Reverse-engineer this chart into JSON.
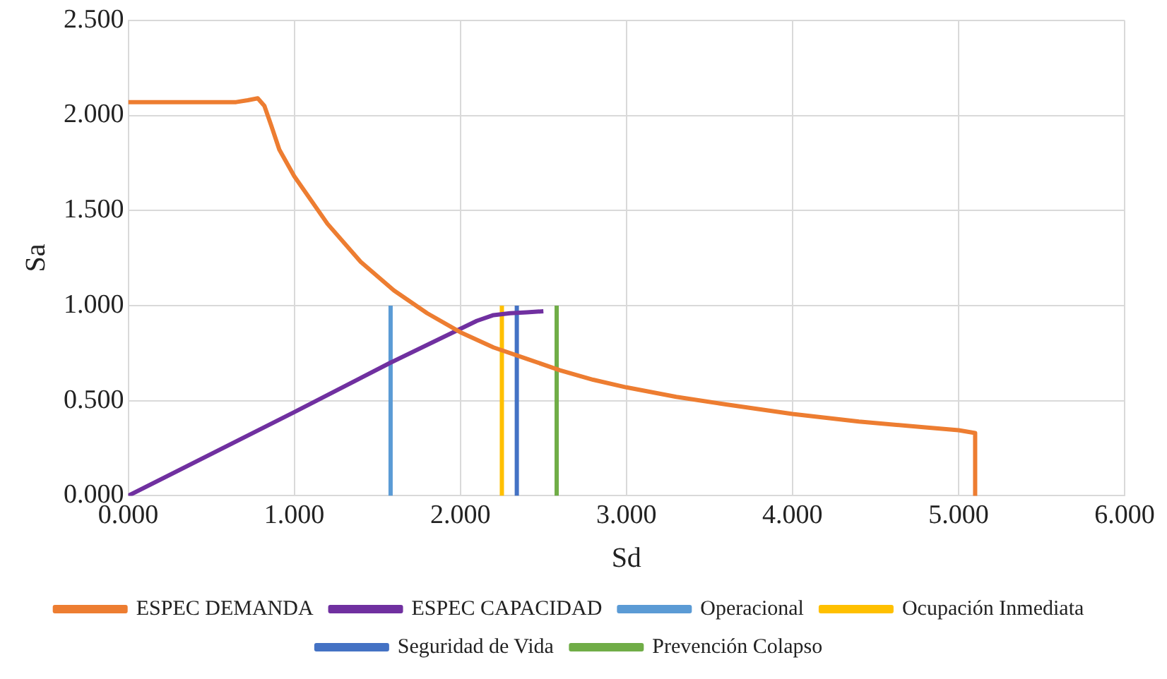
{
  "chart_data": {
    "type": "line",
    "xlabel": "Sd",
    "ylabel": "Sa",
    "xlim": [
      0,
      6
    ],
    "ylim": [
      0,
      2.5
    ],
    "xticks": [
      {
        "value": 0,
        "label": "0.000"
      },
      {
        "value": 1,
        "label": "1.000"
      },
      {
        "value": 2,
        "label": "2.000"
      },
      {
        "value": 3,
        "label": "3.000"
      },
      {
        "value": 4,
        "label": "4.000"
      },
      {
        "value": 5,
        "label": "5.000"
      },
      {
        "value": 6,
        "label": "6.000"
      }
    ],
    "yticks": [
      {
        "value": 0,
        "label": "0.000"
      },
      {
        "value": 0.5,
        "label": "0.500"
      },
      {
        "value": 1,
        "label": "1.000"
      },
      {
        "value": 1.5,
        "label": "1.500"
      },
      {
        "value": 2,
        "label": "2.000"
      },
      {
        "value": 2.5,
        "label": "2.500"
      }
    ],
    "grid": true,
    "legend": "bottom",
    "marker": "none",
    "line_style": "solid",
    "series": [
      {
        "name": "ESPEC DEMANDA",
        "color": "#ed7d31",
        "x": [
          0,
          0.3,
          0.65,
          0.72,
          0.78,
          0.82,
          0.86,
          0.91,
          1.0,
          1.2,
          1.4,
          1.6,
          1.8,
          2.0,
          2.2,
          2.4,
          2.6,
          2.8,
          3.0,
          3.3,
          3.6,
          4.0,
          4.4,
          4.8,
          5.0,
          5.1,
          5.1
        ],
        "values": [
          2.07,
          2.07,
          2.07,
          2.08,
          2.09,
          2.05,
          1.95,
          1.82,
          1.68,
          1.43,
          1.23,
          1.08,
          0.96,
          0.86,
          0.78,
          0.72,
          0.66,
          0.61,
          0.57,
          0.52,
          0.48,
          0.43,
          0.39,
          0.36,
          0.345,
          0.33,
          0
        ]
      },
      {
        "name": "ESPEC CAPACIDAD",
        "color": "#7030a0",
        "x": [
          0,
          1.0,
          1.58,
          2.1,
          2.2,
          2.3,
          2.4,
          2.5
        ],
        "values": [
          0,
          0.44,
          0.7,
          0.92,
          0.95,
          0.96,
          0.965,
          0.97
        ]
      },
      {
        "name": "Operacional",
        "color": "#5b9bd5",
        "x": [
          1.58,
          1.58
        ],
        "values": [
          0,
          1.0
        ]
      },
      {
        "name": "Ocupación Inmediata",
        "color": "#ffc000",
        "x": [
          2.25,
          2.25
        ],
        "values": [
          0,
          1.0
        ]
      },
      {
        "name": "Seguridad de Vida",
        "color": "#4472c4",
        "x": [
          2.34,
          2.34
        ],
        "values": [
          0,
          1.0
        ]
      },
      {
        "name": "Prevención Colapso",
        "color": "#70ad47",
        "x": [
          2.58,
          2.58
        ],
        "values": [
          0,
          1.0
        ]
      }
    ]
  }
}
